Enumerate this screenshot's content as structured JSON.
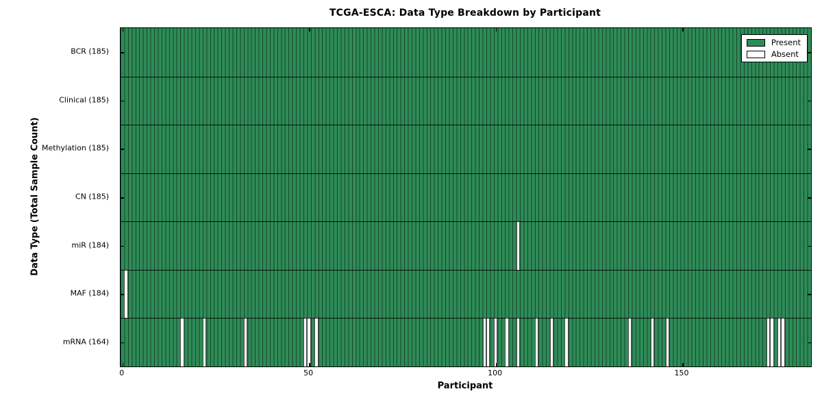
{
  "title": "TCGA-ESCA: Data Type Breakdown by Participant",
  "xlabel": "Participant",
  "ylabel": "Data Type (Total Sample Count)",
  "legend": {
    "present_label": "Present",
    "absent_label": "Absent"
  },
  "colors": {
    "present": "#2e8b57",
    "absent": "#ffffff",
    "cell_border": "rgba(0,0,0,0.5)",
    "axis": "#000000"
  },
  "chart_data": {
    "type": "heatmap",
    "title": "TCGA-ESCA: Data Type Breakdown by Participant",
    "xlabel": "Participant",
    "ylabel": "Data Type (Total Sample Count)",
    "n_participants": 185,
    "x_ticks": [
      0,
      50,
      100,
      150
    ],
    "legend_entries": [
      "Present",
      "Absent"
    ],
    "legend_position": "upper right",
    "rows": [
      {
        "name": "BCR",
        "label": "BCR (185)",
        "total": 185,
        "absent": []
      },
      {
        "name": "Clinical",
        "label": "Clinical (185)",
        "total": 185,
        "absent": []
      },
      {
        "name": "Methylation",
        "label": "Methylation (185)",
        "total": 185,
        "absent": []
      },
      {
        "name": "CN",
        "label": "CN (185)",
        "total": 185,
        "absent": []
      },
      {
        "name": "miR",
        "label": "miR (184)",
        "total": 184,
        "absent": [
          106
        ]
      },
      {
        "name": "MAF",
        "label": "MAF (184)",
        "total": 184,
        "absent": [
          1
        ]
      },
      {
        "name": "mRNA",
        "label": "mRNA (164)",
        "total": 164,
        "absent": [
          16,
          22,
          33,
          49,
          50,
          52,
          97,
          98,
          100,
          103,
          106,
          111,
          115,
          119,
          136,
          142,
          146,
          173,
          174,
          176,
          177
        ]
      }
    ]
  }
}
